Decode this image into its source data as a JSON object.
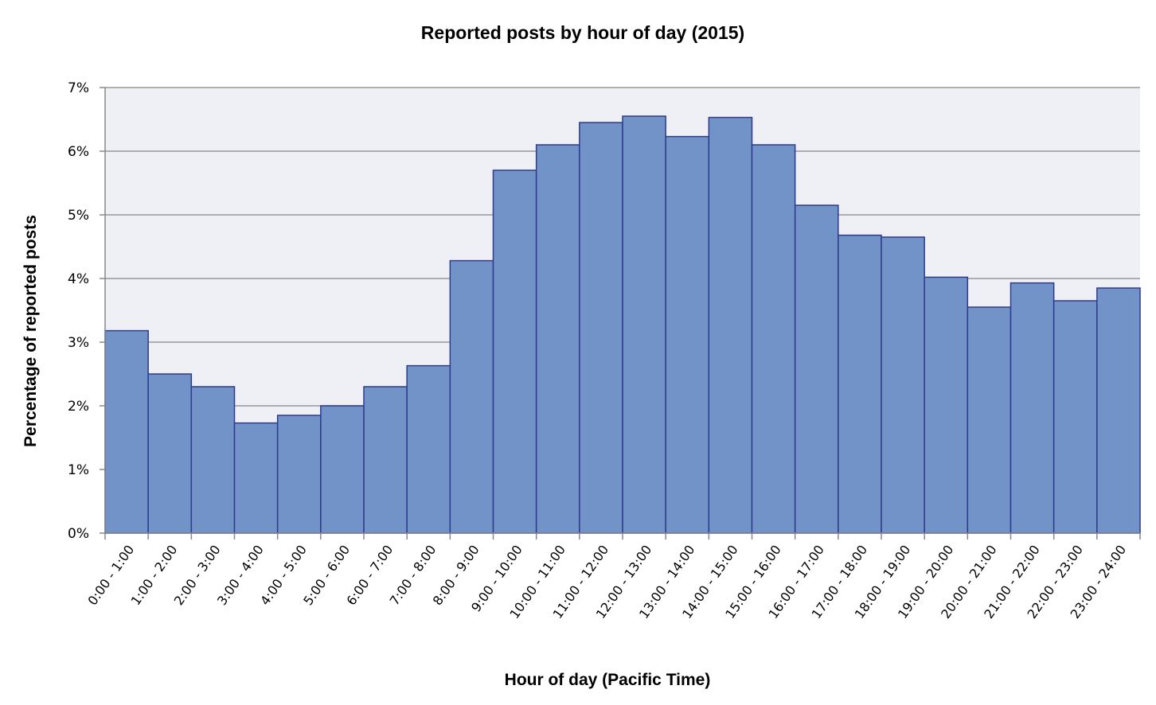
{
  "chart_data": {
    "type": "bar",
    "title": "Reported posts by hour of day (2015)",
    "xlabel": "Hour of day (Pacific Time)",
    "ylabel": "Percentage of reported posts",
    "ylim": [
      0,
      7
    ],
    "yticks": [
      "0%",
      "1%",
      "2%",
      "3%",
      "4%",
      "5%",
      "6%",
      "7%"
    ],
    "grid": true,
    "legend": "none",
    "categories": [
      "0:00 - 1:00",
      "1:00 - 2:00",
      "2:00 - 3:00",
      "3:00 - 4:00",
      "4:00 - 5:00",
      "5:00 - 6:00",
      "6:00 - 7:00",
      "7:00 - 8:00",
      "8:00 - 9:00",
      "9:00 - 10:00",
      "10:00 - 11:00",
      "11:00 - 12:00",
      "12:00 - 13:00",
      "13:00 - 14:00",
      "14:00 - 15:00",
      "15:00 - 16:00",
      "16:00 - 17:00",
      "17:00 - 18:00",
      "18:00 - 19:00",
      "19:00 - 20:00",
      "20:00 - 21:00",
      "21:00 - 22:00",
      "22:00 - 23:00",
      "23:00 - 24:00"
    ],
    "values": [
      3.18,
      2.5,
      2.3,
      1.73,
      1.85,
      2.0,
      2.3,
      2.63,
      4.28,
      5.7,
      6.1,
      6.45,
      6.55,
      6.23,
      6.53,
      6.1,
      5.15,
      4.68,
      4.65,
      4.02,
      3.55,
      3.93,
      3.65,
      3.85
    ],
    "colors": {
      "bar_fill": "#7193c8",
      "bar_stroke": "#2e3b8e",
      "plot_background": "#efeff6",
      "gridline": "#999999",
      "axis": "#888888"
    }
  }
}
